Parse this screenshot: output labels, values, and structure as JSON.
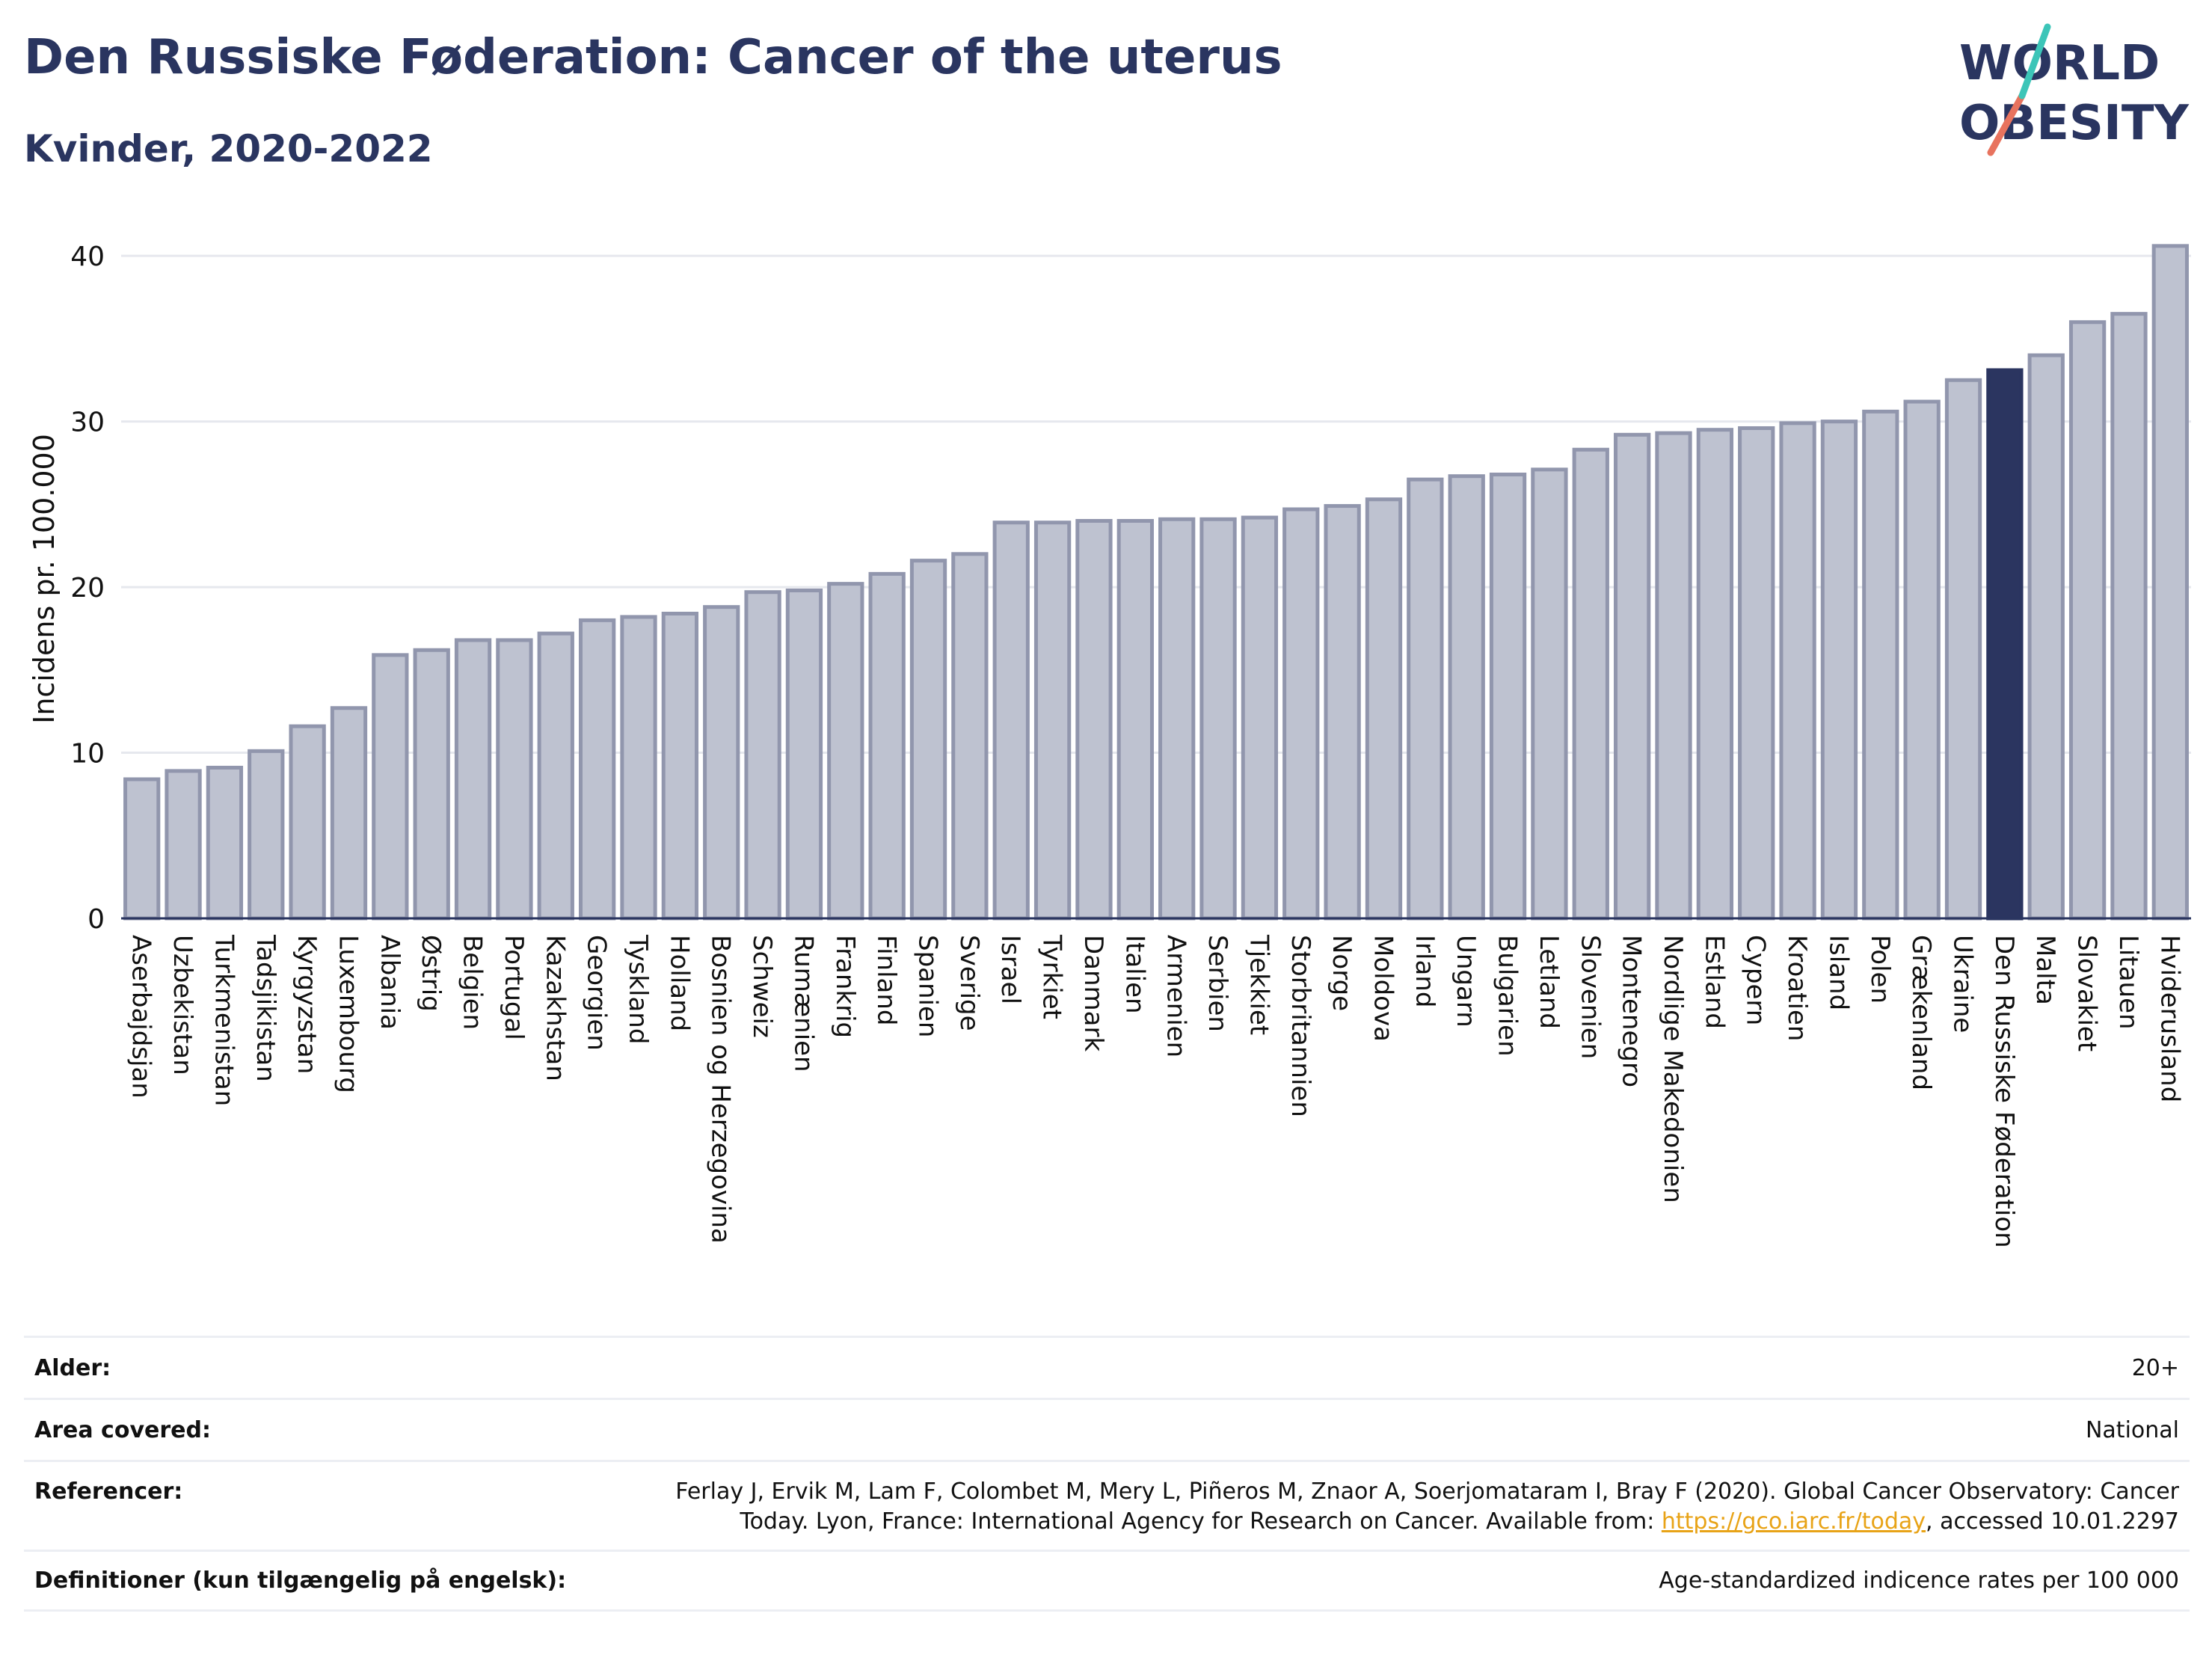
{
  "header": {
    "title": "Den Russiske Føderation: Cancer of the uterus",
    "subtitle": "Kvinder, 2020-2022"
  },
  "logo": {
    "line1": "WORLD",
    "line2": "OBESITY"
  },
  "colors": {
    "bar": "#bec2d0",
    "bar_border": "#9196ad",
    "highlight": "#2b3560",
    "title": "#2a3560",
    "grid": "#e6e8ee",
    "link": "#e8a317"
  },
  "chart_data": {
    "type": "bar",
    "ylabel": "Incidens pr. 100.000",
    "ylim": [
      0,
      41
    ],
    "yticks": [
      0,
      10,
      20,
      30,
      40
    ],
    "grid": true,
    "highlight_category": "Den Russiske Føderation",
    "categories": [
      "Aserbajdsjan",
      "Uzbekistan",
      "Turkmenistan",
      "Tadsjikistan",
      "Kyrgyzstan",
      "Luxembourg",
      "Albania",
      "Østrig",
      "Belgien",
      "Portugal",
      "Kazakhstan",
      "Georgien",
      "Tyskland",
      "Holland",
      "Bosnien og Herzegovina",
      "Schweiz",
      "Rumænien",
      "Frankrig",
      "Finland",
      "Spanien",
      "Sverige",
      "Israel",
      "Tyrkiet",
      "Danmark",
      "Italien",
      "Armenien",
      "Serbien",
      "Tjekkiet",
      "Storbritannien",
      "Norge",
      "Moldova",
      "Irland",
      "Ungarn",
      "Bulgarien",
      "Letland",
      "Slovenien",
      "Montenegro",
      "Nordlige Makedonien",
      "Estland",
      "Cypern",
      "Kroatien",
      "Island",
      "Polen",
      "Grækenland",
      "Ukraine",
      "Den Russiske Føderation",
      "Malta",
      "Slovakiet",
      "Litauen",
      "Hviderusland"
    ],
    "values": [
      8.4,
      8.9,
      9.1,
      10.1,
      11.6,
      12.7,
      15.9,
      16.2,
      16.8,
      16.8,
      17.2,
      18.0,
      18.2,
      18.4,
      18.8,
      19.7,
      19.8,
      20.2,
      20.8,
      21.6,
      22.0,
      23.9,
      23.9,
      24.0,
      24.0,
      24.1,
      24.1,
      24.2,
      24.7,
      24.9,
      25.3,
      26.5,
      26.7,
      26.8,
      27.1,
      28.3,
      29.2,
      29.3,
      29.5,
      29.6,
      29.9,
      30.0,
      30.6,
      31.2,
      32.5,
      33.1,
      34.0,
      36.0,
      36.5,
      40.6
    ]
  },
  "info": {
    "rows": [
      {
        "label": "Alder:",
        "value": "20+"
      },
      {
        "label": "Area covered:",
        "value": "National"
      },
      {
        "label": "Referencer:",
        "value_line1": "Ferlay J, Ervik M, Lam F, Colombet M, Mery L, Piñeros M, Znaor A, Soerjomataram I, Bray F (2020). Global Cancer Observatory: Cancer",
        "value_line2_pre": "Today. Lyon, France: International Agency for Research on Cancer. Available from: ",
        "link": "https://gco.iarc.fr/today",
        "value_line2_post": ", accessed 10.01.2297"
      },
      {
        "label": "Definitioner (kun tilgængelig på engelsk):",
        "value": "Age-standardized indicence rates per 100 000"
      }
    ]
  }
}
